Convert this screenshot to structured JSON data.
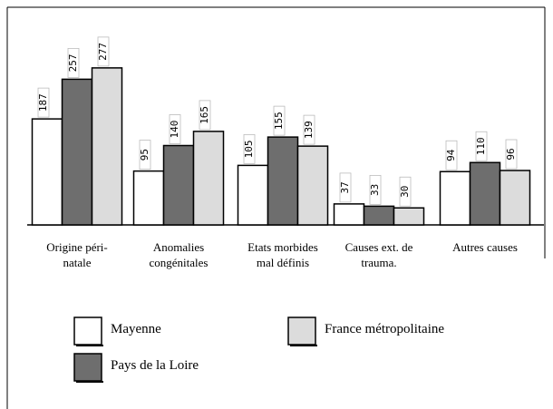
{
  "chart_data": {
    "type": "bar",
    "categories": [
      "Origine péri-\nnatale",
      "Anomalies\ncongénitales",
      "Etats morbides\nmal définis",
      "Causes ext. de\ntrauma.",
      "Autres causes"
    ],
    "series": [
      {
        "name": "Mayenne",
        "color": "#ffffff",
        "values": [
          187,
          95,
          105,
          37,
          94
        ]
      },
      {
        "name": "Pays de la Loire",
        "color": "#6e6e6e",
        "values": [
          257,
          140,
          155,
          33,
          110
        ]
      },
      {
        "name": "France métropolitaine",
        "color": "#dcdcdc",
        "values": [
          277,
          165,
          139,
          30,
          96
        ]
      }
    ],
    "legend": "bottom"
  }
}
